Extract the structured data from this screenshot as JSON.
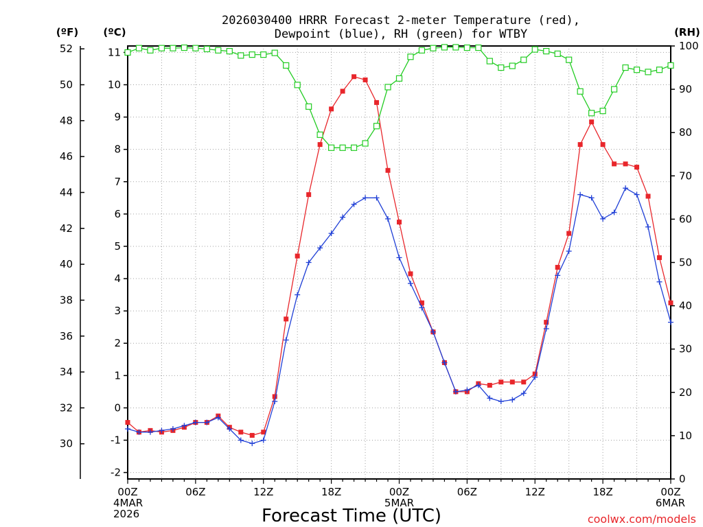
{
  "title": {
    "line1": "2026030400 HRRR Forecast 2-meter Temperature (red),",
    "line2": "Dewpoint (blue), RH (green) for WTBY"
  },
  "axis_units": {
    "fahrenheit": "(ºF)",
    "celsius": "(ºC)",
    "rh": "(RH)"
  },
  "xlabel": "Forecast Time (UTC)",
  "credit": "coolwx.com/models",
  "colors": {
    "temperature": "#e8262b",
    "dewpoint": "#1f3fd6",
    "rh": "#22cc22",
    "grid": "#a0a0a0",
    "credit": "#e8262b"
  },
  "chart_data": {
    "type": "line",
    "title": "2026030400 HRRR Forecast 2-meter Temperature (red), Dewpoint (blue), RH (green) for WTBY",
    "xlabel": "Forecast Time (UTC)",
    "xlim": [
      0,
      48
    ],
    "ylim_celsius": [
      -2.2,
      11.2
    ],
    "ylim_fahrenheit": [
      28.04,
      52.16
    ],
    "ylim_rh": [
      0,
      100
    ],
    "grid": true,
    "x_ticks": [
      {
        "hour": 0,
        "lines": [
          "00Z",
          "4MAR",
          "2026"
        ]
      },
      {
        "hour": 6,
        "lines": [
          "06Z"
        ]
      },
      {
        "hour": 12,
        "lines": [
          "12Z"
        ]
      },
      {
        "hour": 18,
        "lines": [
          "18Z"
        ]
      },
      {
        "hour": 24,
        "lines": [
          "00Z",
          "5MAR"
        ]
      },
      {
        "hour": 30,
        "lines": [
          "06Z"
        ]
      },
      {
        "hour": 36,
        "lines": [
          "12Z"
        ]
      },
      {
        "hour": 42,
        "lines": [
          "18Z"
        ]
      },
      {
        "hour": 48,
        "lines": [
          "00Z",
          "6MAR"
        ]
      }
    ],
    "celsius_ticks": [
      "-2",
      "-1",
      "0",
      "1",
      "2",
      "3",
      "4",
      "5",
      "6",
      "7",
      "8",
      "9",
      "10",
      "11"
    ],
    "fahrenheit_ticks": [
      "30",
      "32",
      "34",
      "36",
      "38",
      "40",
      "42",
      "44",
      "46",
      "48",
      "50",
      "52"
    ],
    "rh_ticks": [
      "0",
      "10",
      "20",
      "30",
      "40",
      "50",
      "60",
      "70",
      "80",
      "90",
      "100"
    ],
    "series": [
      {
        "name": "Temperature",
        "units": "C",
        "axis": "celsius",
        "color": "#e8262b",
        "marker": "filled-square",
        "values": [
          -0.45,
          -0.75,
          -0.7,
          -0.75,
          -0.7,
          -0.6,
          -0.45,
          -0.45,
          -0.25,
          -0.6,
          -0.75,
          -0.85,
          -0.75,
          0.35,
          2.75,
          4.7,
          6.6,
          8.15,
          9.25,
          9.8,
          10.25,
          10.15,
          9.45,
          7.35,
          5.75,
          4.15,
          3.25,
          2.35,
          1.4,
          0.5,
          0.5,
          0.75,
          0.7,
          0.8,
          0.8,
          0.8,
          1.05,
          2.65,
          4.35,
          5.4,
          8.15,
          8.85,
          8.15,
          7.55,
          7.55,
          7.45,
          6.55,
          4.65,
          3.25
        ]
      },
      {
        "name": "Dewpoint",
        "units": "C",
        "axis": "celsius",
        "color": "#1f3fd6",
        "marker": "plus",
        "values": [
          -0.65,
          -0.75,
          -0.75,
          -0.7,
          -0.65,
          -0.55,
          -0.45,
          -0.45,
          -0.3,
          -0.65,
          -1.0,
          -1.1,
          -1.0,
          0.2,
          2.1,
          3.5,
          4.5,
          4.95,
          5.4,
          5.9,
          6.3,
          6.5,
          6.5,
          5.85,
          4.65,
          3.85,
          3.1,
          2.35,
          1.4,
          0.5,
          0.55,
          0.7,
          0.3,
          0.2,
          0.25,
          0.45,
          0.95,
          2.45,
          4.1,
          4.85,
          6.6,
          6.5,
          5.85,
          6.05,
          6.8,
          6.6,
          5.6,
          3.9,
          2.65
        ]
      },
      {
        "name": "RH",
        "units": "%",
        "axis": "rh",
        "color": "#22cc22",
        "marker": "hollow-square",
        "values": [
          98.5,
          99.5,
          99,
          99.5,
          99.5,
          99.6,
          99.5,
          99.3,
          99,
          98.8,
          97.8,
          98,
          98,
          98.4,
          95.5,
          91,
          86,
          79.5,
          76.5,
          76.5,
          76.5,
          77.5,
          81.5,
          90.5,
          92.5,
          97.5,
          99,
          99.5,
          99.7,
          99.7,
          99.6,
          99.6,
          96.5,
          95,
          95.4,
          96.8,
          99.2,
          98.8,
          98.2,
          96.8,
          89.5,
          84.5,
          85,
          90,
          95,
          94.5,
          94,
          94.5,
          95.5
        ]
      }
    ]
  }
}
